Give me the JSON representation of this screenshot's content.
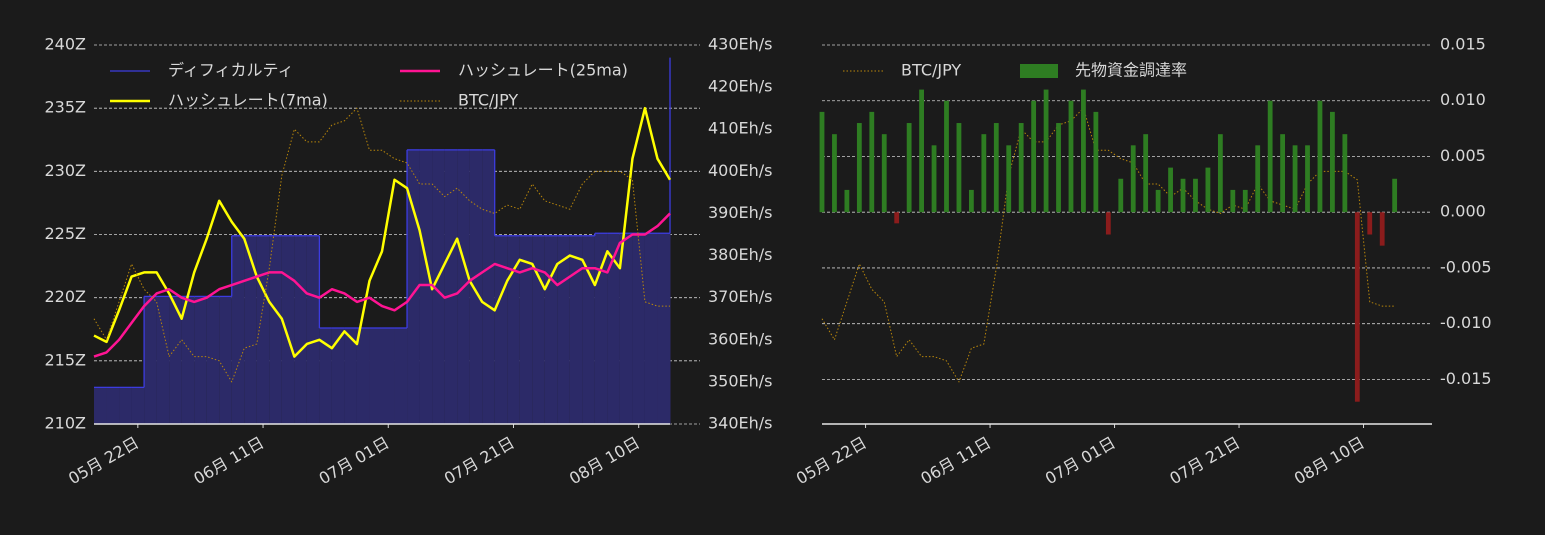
{
  "chart_data": [
    {
      "type": "line",
      "x": [
        "05-15",
        "05-17",
        "05-19",
        "05-21",
        "05-23",
        "05-25",
        "05-27",
        "05-29",
        "05-31",
        "06-02",
        "06-04",
        "06-06",
        "06-08",
        "06-10",
        "06-12",
        "06-14",
        "06-16",
        "06-18",
        "06-20",
        "06-22",
        "06-24",
        "06-26",
        "06-28",
        "06-30",
        "07-02",
        "07-04",
        "07-06",
        "07-08",
        "07-10",
        "07-12",
        "07-14",
        "07-16",
        "07-18",
        "07-20",
        "07-22",
        "07-24",
        "07-26",
        "07-28",
        "07-30",
        "08-01",
        "08-03",
        "08-05",
        "08-07",
        "08-09",
        "08-11",
        "08-13",
        "08-15"
      ],
      "xlim": [
        "05-15",
        "08-15"
      ],
      "xticks": [
        {
          "value": "05-22",
          "label": "05月 22日"
        },
        {
          "value": "06-11",
          "label": "06月 11日"
        },
        {
          "value": "07-01",
          "label": "07月 01日"
        },
        {
          "value": "07-21",
          "label": "07月 21日"
        },
        {
          "value": "08-10",
          "label": "08月 10日"
        }
      ],
      "ylim": [
        210,
        240
      ],
      "yticks": [
        {
          "value": 210,
          "label": "210Z"
        },
        {
          "value": 215,
          "label": "215Z"
        },
        {
          "value": 220,
          "label": "220Z"
        },
        {
          "value": 225,
          "label": "225Z"
        },
        {
          "value": 230,
          "label": "230Z"
        },
        {
          "value": 235,
          "label": "235Z"
        },
        {
          "value": 240,
          "label": "240Z"
        }
      ],
      "y2lim": [
        340,
        430
      ],
      "y2ticks": [
        {
          "value": 340,
          "label": "340Eh/s"
        },
        {
          "value": 350,
          "label": "350Eh/s"
        },
        {
          "value": 360,
          "label": "360Eh/s"
        },
        {
          "value": 370,
          "label": "370Eh/s"
        },
        {
          "value": 380,
          "label": "380Eh/s"
        },
        {
          "value": 390,
          "label": "390Eh/s"
        },
        {
          "value": 400,
          "label": "400Eh/s"
        },
        {
          "value": 410,
          "label": "410Eh/s"
        },
        {
          "value": 420,
          "label": "420Eh/s"
        },
        {
          "value": 430,
          "label": "430Eh/s"
        }
      ],
      "y3lim": [
        3.5,
        4.4
      ],
      "grid": "y",
      "series": [
        {
          "name": "ディフィカルティ",
          "type": "step-area",
          "axis": "y",
          "color": "#3c3ce0",
          "fill": "#2c2a68",
          "values": [
            212.9,
            212.9,
            212.9,
            212.9,
            220.1,
            220.1,
            220.1,
            220.1,
            220.1,
            220.1,
            220.1,
            224.9,
            224.9,
            224.9,
            224.9,
            224.9,
            224.9,
            224.9,
            217.6,
            217.6,
            217.6,
            217.6,
            217.6,
            217.6,
            217.6,
            231.7,
            231.7,
            231.7,
            231.7,
            231.7,
            231.7,
            231.7,
            224.9,
            224.9,
            224.9,
            224.9,
            224.9,
            224.9,
            224.9,
            224.9,
            225.1,
            225.1,
            225.1,
            225.1,
            225.1,
            225.1,
            239.0
          ]
        },
        {
          "name": "ハッシュレート(7ma)",
          "type": "line",
          "axis": "y2",
          "color": "#ffff00",
          "width": 2.5,
          "values": [
            361,
            359.5,
            367,
            375,
            376,
            376,
            371,
            365,
            376,
            384,
            393,
            388,
            384,
            375,
            369,
            365,
            356,
            359,
            360,
            358,
            362,
            359,
            374,
            381,
            398,
            396,
            386,
            372,
            378,
            384,
            374,
            369,
            367,
            374,
            379,
            378,
            372,
            378,
            380,
            379,
            373,
            381,
            377,
            403,
            415,
            403,
            398
          ]
        },
        {
          "name": "ハッシュレート(25ma)",
          "type": "line",
          "axis": "y2",
          "color": "#ff1493",
          "width": 2.5,
          "values": [
            356,
            357,
            360,
            364,
            368,
            371,
            372,
            370,
            369,
            370,
            372,
            373,
            374,
            375,
            376,
            376,
            374,
            371,
            370,
            372,
            371,
            369,
            370,
            368,
            367,
            369,
            373,
            373,
            370,
            371,
            374,
            376,
            378,
            377,
            376,
            377,
            376,
            373,
            375,
            377,
            377,
            376,
            383,
            385,
            385,
            387,
            390
          ]
        },
        {
          "name": "BTC/JPY",
          "type": "line",
          "axis": "y3",
          "color": "#b8860b",
          "width": 1,
          "dash": "1.5 2",
          "values": [
            3.75,
            3.7,
            3.79,
            3.88,
            3.82,
            3.79,
            3.66,
            3.7,
            3.66,
            3.66,
            3.65,
            3.6,
            3.68,
            3.69,
            3.87,
            4.09,
            4.2,
            4.17,
            4.17,
            4.21,
            4.22,
            4.25,
            4.15,
            4.15,
            4.13,
            4.12,
            4.07,
            4.07,
            4.04,
            4.06,
            4.03,
            4.01,
            4.0,
            4.02,
            4.01,
            4.07,
            4.03,
            4.02,
            4.01,
            4.07,
            4.1,
            4.1,
            4.1,
            4.08,
            3.79,
            3.78,
            3.78
          ]
        }
      ]
    },
    {
      "type": "bar",
      "x": [
        "05-15",
        "05-17",
        "05-19",
        "05-21",
        "05-23",
        "05-25",
        "05-27",
        "05-29",
        "05-31",
        "06-02",
        "06-04",
        "06-06",
        "06-08",
        "06-10",
        "06-12",
        "06-14",
        "06-16",
        "06-18",
        "06-20",
        "06-22",
        "06-24",
        "06-26",
        "06-28",
        "06-30",
        "07-02",
        "07-04",
        "07-06",
        "07-08",
        "07-10",
        "07-12",
        "07-14",
        "07-16",
        "07-18",
        "07-20",
        "07-22",
        "07-24",
        "07-26",
        "07-28",
        "07-30",
        "08-01",
        "08-03",
        "08-05",
        "08-07",
        "08-09",
        "08-11",
        "08-13",
        "08-15"
      ],
      "xlim": [
        "05-15",
        "08-21"
      ],
      "xticks": [
        {
          "value": "05-22",
          "label": "05月 22日"
        },
        {
          "value": "06-11",
          "label": "06月 11日"
        },
        {
          "value": "07-01",
          "label": "07月 01日"
        },
        {
          "value": "07-21",
          "label": "07月 21日"
        },
        {
          "value": "08-10",
          "label": "08月 10日"
        }
      ],
      "y2lim": [
        -0.019,
        0.015
      ],
      "y2ticks": [
        -0.015,
        {
          "value": -0.01,
          "label": "-0.010"
        },
        -0.005,
        {
          "value": 0,
          "label": "0.000"
        },
        0.005,
        {
          "value": 0.01,
          "label": "0.010"
        },
        0.015
      ],
      "y3lim": [
        3.5,
        4.4
      ],
      "grid": "y2",
      "series": [
        {
          "name": "BTC/JPY",
          "type": "line",
          "axis": "y3",
          "color": "#b8860b",
          "width": 1,
          "dash": "1.5 2",
          "values": [
            3.75,
            3.7,
            3.79,
            3.88,
            3.82,
            3.79,
            3.66,
            3.7,
            3.66,
            3.66,
            3.65,
            3.6,
            3.68,
            3.69,
            3.87,
            4.09,
            4.2,
            4.17,
            4.17,
            4.21,
            4.22,
            4.25,
            4.15,
            4.15,
            4.13,
            4.12,
            4.07,
            4.07,
            4.04,
            4.06,
            4.03,
            4.01,
            4.0,
            4.02,
            4.01,
            4.07,
            4.03,
            4.02,
            4.01,
            4.07,
            4.1,
            4.1,
            4.1,
            4.08,
            3.79,
            3.78,
            3.78
          ]
        },
        {
          "name": "先物資金調達率",
          "type": "bar",
          "axis": "y2",
          "color": "#2e7d22",
          "negative_color": "#8b1c1c",
          "values": [
            0.009,
            0.007,
            0.002,
            0.008,
            0.009,
            0.007,
            -0.001,
            0.008,
            0.011,
            0.006,
            0.01,
            0.008,
            0.002,
            0.007,
            0.008,
            0.006,
            0.008,
            0.01,
            0.011,
            0.008,
            0.01,
            0.011,
            0.009,
            -0.002,
            0.003,
            0.006,
            0.007,
            0.002,
            0.004,
            0.003,
            0.003,
            0.004,
            0.007,
            0.002,
            0.002,
            0.006,
            0.01,
            0.007,
            0.006,
            0.006,
            0.01,
            0.009,
            0.007,
            -0.017,
            -0.002,
            -0.003,
            0.003
          ]
        }
      ]
    }
  ]
}
